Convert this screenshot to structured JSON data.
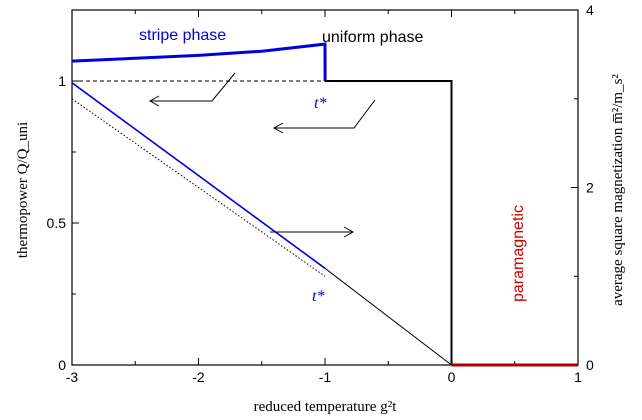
{
  "chart_data": {
    "type": "line",
    "xlabel": "reduced temperature g²t",
    "ylabel_left": "thermopower Q/Q_uni",
    "ylabel_right": "average square magnetization m̅²/m_s²",
    "xlim": [
      -3,
      1
    ],
    "ylim_left": [
      0,
      1.25
    ],
    "ylim_right": [
      0,
      4
    ],
    "x_ticks": [
      -3,
      -2,
      -1,
      0,
      1
    ],
    "x_tick_labels": [
      "-3",
      "-2",
      "-1",
      "0",
      "1"
    ],
    "y_left_ticks": [
      0,
      0.5,
      1
    ],
    "y_left_tick_labels": [
      "0",
      "0.5",
      "1"
    ],
    "y_right_ticks": [
      0,
      2,
      4
    ],
    "y_right_tick_labels": [
      "0",
      "2",
      "4"
    ],
    "grid": false,
    "series": [
      {
        "name": "thermopower stripe phase",
        "axis": "left",
        "color": "#0000dd",
        "x": [
          -3.0,
          -2.5,
          -2.0,
          -1.5,
          -1.0,
          -0.999
        ],
        "y": [
          1.07,
          1.08,
          1.09,
          1.105,
          1.13,
          1.0
        ]
      },
      {
        "name": "thermopower uniform phase",
        "axis": "left",
        "color": "#000000",
        "x": [
          -1.0,
          0.0,
          0.0
        ],
        "y": [
          1.0,
          1.0,
          0.0
        ]
      },
      {
        "name": "thermopower uniform extrapolation",
        "axis": "left",
        "color": "#000000",
        "style": "dashed",
        "x": [
          -3.0,
          -1.0
        ],
        "y": [
          1.0,
          1.0
        ]
      },
      {
        "name": "magnetization stripe phase",
        "axis": "right",
        "color": "#0000dd",
        "x": [
          -3.0,
          -1.0
        ],
        "y": [
          3.18,
          1.09
        ]
      },
      {
        "name": "magnetization uniform phase",
        "axis": "right",
        "color": "#000000",
        "x": [
          -1.0,
          0.0
        ],
        "y": [
          1.09,
          0.0
        ]
      },
      {
        "name": "magnetization uniform extrapolation",
        "axis": "right",
        "color": "#000000",
        "style": "dotted",
        "x": [
          -3.0,
          -1.0
        ],
        "y": [
          3.0,
          1.0
        ]
      },
      {
        "name": "magnetization paramagnetic",
        "axis": "right",
        "color": "#aa0000",
        "x": [
          0.0,
          1.0
        ],
        "y": [
          0.0,
          0.0
        ]
      }
    ],
    "annotations": [
      {
        "text": "stripe phase",
        "color": "#0000dd"
      },
      {
        "text": "uniform phase",
        "color": "#000000"
      },
      {
        "text": "paramagnetic",
        "color": "#cc0000"
      },
      {
        "text": "t*",
        "color": "#0000dd"
      },
      {
        "text": "t*",
        "color": "#0000dd"
      }
    ]
  }
}
